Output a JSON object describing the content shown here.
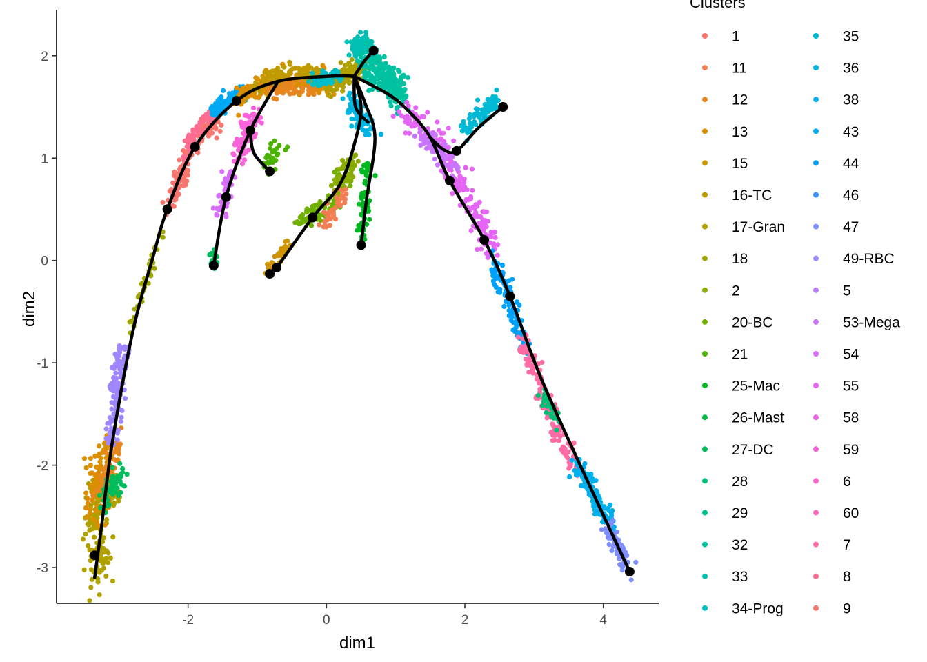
{
  "chart_data": {
    "type": "scatter",
    "xlabel": "dim1",
    "ylabel": "dim2",
    "xlim": [
      -3.9,
      4.8
    ],
    "ylim": [
      -3.35,
      2.45
    ],
    "x_ticks": [
      -2,
      0,
      2,
      4
    ],
    "y_ticks": [
      -3,
      -2,
      -1,
      0,
      1,
      2
    ],
    "x_tick_labels": [
      "-2",
      "0",
      "2",
      "4"
    ],
    "y_tick_labels": [
      "-3",
      "-2",
      "-1",
      "0",
      "1",
      "2"
    ],
    "grid": false,
    "legend": {
      "title": "Clusters",
      "placement": "right",
      "columns": 2,
      "entries": [
        {
          "label": "1",
          "color": "#F8766D"
        },
        {
          "label": "11",
          "color": "#F27D52"
        },
        {
          "label": "12",
          "color": "#E7851E"
        },
        {
          "label": "13",
          "color": "#DB8E00"
        },
        {
          "label": "15",
          "color": "#CF9400"
        },
        {
          "label": "16-TC",
          "color": "#C09B00"
        },
        {
          "label": "17-Gran",
          "color": "#B0A100"
        },
        {
          "label": "18",
          "color": "#9FA600"
        },
        {
          "label": "2",
          "color": "#8AAB00"
        },
        {
          "label": "20-BC",
          "color": "#70B000"
        },
        {
          "label": "21",
          "color": "#4BB400"
        },
        {
          "label": "25-Mac",
          "color": "#00B81F"
        },
        {
          "label": "26-Mast",
          "color": "#00BA42"
        },
        {
          "label": "27-DC",
          "color": "#00BD5C"
        },
        {
          "label": "28",
          "color": "#00BF74"
        },
        {
          "label": "29",
          "color": "#00C08B"
        },
        {
          "label": "32",
          "color": "#00C1A0"
        },
        {
          "label": "33",
          "color": "#00C0B4"
        },
        {
          "label": "34-Prog",
          "color": "#00BDC7"
        },
        {
          "label": "35",
          "color": "#00BAD5"
        },
        {
          "label": "36",
          "color": "#00B5E2"
        },
        {
          "label": "38",
          "color": "#00B0EC"
        },
        {
          "label": "43",
          "color": "#00A9F4"
        },
        {
          "label": "44",
          "color": "#00A1FA"
        },
        {
          "label": "46",
          "color": "#3F98FF"
        },
        {
          "label": "47",
          "color": "#7E8EFF"
        },
        {
          "label": "49-RBC",
          "color": "#9F86FF"
        },
        {
          "label": "5",
          "color": "#B67DFF"
        },
        {
          "label": "53-Mega",
          "color": "#C875FF"
        },
        {
          "label": "54",
          "color": "#D86CFD"
        },
        {
          "label": "55",
          "color": "#E566F5"
        },
        {
          "label": "58",
          "color": "#F062E9"
        },
        {
          "label": "59",
          "color": "#F863DB"
        },
        {
          "label": "6",
          "color": "#FD65CB"
        },
        {
          "label": "60",
          "color": "#FF68B8"
        },
        {
          "label": "7",
          "color": "#FF6BA4"
        },
        {
          "label": "8",
          "color": "#FF6C91"
        },
        {
          "label": "9",
          "color": "#F8766D"
        }
      ]
    },
    "clouds": [
      {
        "color": "#B0A100",
        "n": 170,
        "pts": [
          [
            -3.3,
            -3.08
          ],
          [
            -3.3,
            -2.3
          ],
          [
            -3.05,
            -2.2
          ]
        ],
        "spread": 0.1
      },
      {
        "color": "#DB8E00",
        "n": 90,
        "pts": [
          [
            -3.35,
            -2.5
          ],
          [
            -3.25,
            -1.95
          ],
          [
            -3.1,
            -1.8
          ]
        ],
        "spread": 0.07
      },
      {
        "color": "#E7851E",
        "n": 50,
        "pts": [
          [
            -3.3,
            -2.3
          ],
          [
            -3.0,
            -1.75
          ]
        ],
        "spread": 0.06
      },
      {
        "color": "#00BD5C",
        "n": 55,
        "pts": [
          [
            -3.2,
            -2.35
          ],
          [
            -3.0,
            -2.1
          ]
        ],
        "spread": 0.06
      },
      {
        "color": "#9F86FF",
        "n": 120,
        "pts": [
          [
            -3.1,
            -1.8
          ],
          [
            -3.05,
            -1.3
          ],
          [
            -2.95,
            -0.85
          ]
        ],
        "spread": 0.05
      },
      {
        "color": "#9FA600",
        "n": 40,
        "pts": [
          [
            -2.85,
            -0.7
          ],
          [
            -2.55,
            -0.05
          ],
          [
            -2.35,
            0.32
          ]
        ],
        "spread": 0.03
      },
      {
        "color": "#F8766D",
        "n": 150,
        "pts": [
          [
            -2.28,
            0.5
          ],
          [
            -2.05,
            0.95
          ],
          [
            -1.88,
            1.2
          ],
          [
            -1.6,
            1.38
          ]
        ],
        "spread": 0.05
      },
      {
        "color": "#FF6C91",
        "n": 50,
        "pts": [
          [
            -2.1,
            1.0
          ],
          [
            -1.85,
            1.3
          ],
          [
            -1.6,
            1.45
          ]
        ],
        "spread": 0.04
      },
      {
        "color": "#00A9F4",
        "n": 110,
        "pts": [
          [
            -1.65,
            1.45
          ],
          [
            -1.4,
            1.58
          ],
          [
            -1.15,
            1.67
          ]
        ],
        "spread": 0.04
      },
      {
        "color": "#DB8E00",
        "n": 260,
        "pts": [
          [
            -1.25,
            1.6
          ],
          [
            -0.8,
            1.74
          ],
          [
            -0.3,
            1.76
          ],
          [
            0.1,
            1.72
          ]
        ],
        "spread": 0.05
      },
      {
        "color": "#C09B00",
        "n": 120,
        "pts": [
          [
            -1.05,
            1.68
          ],
          [
            -0.5,
            1.85
          ],
          [
            -0.1,
            1.82
          ]
        ],
        "spread": 0.04
      },
      {
        "color": "#E7851E",
        "n": 60,
        "pts": [
          [
            -0.85,
            1.65
          ],
          [
            -0.2,
            1.68
          ]
        ],
        "spread": 0.04
      },
      {
        "color": "#B0A100",
        "n": 130,
        "pts": [
          [
            0.05,
            1.72
          ],
          [
            0.3,
            1.82
          ],
          [
            0.55,
            1.9
          ]
        ],
        "spread": 0.05
      },
      {
        "color": "#00BDC7",
        "n": 90,
        "pts": [
          [
            -0.2,
            1.75
          ],
          [
            0.2,
            1.82
          ]
        ],
        "spread": 0.03
      },
      {
        "color": "#00C0B4",
        "n": 130,
        "pts": [
          [
            0.4,
            2.05
          ],
          [
            0.55,
            2.12
          ],
          [
            0.7,
            2.02
          ]
        ],
        "spread": 0.05
      },
      {
        "color": "#00C1A0",
        "n": 220,
        "pts": [
          [
            0.6,
            1.9
          ],
          [
            0.85,
            1.8
          ],
          [
            1.05,
            1.6
          ]
        ],
        "spread": 0.08
      },
      {
        "color": "#00B5E2",
        "n": 80,
        "pts": [
          [
            0.3,
            1.55
          ],
          [
            0.5,
            1.4
          ],
          [
            0.6,
            1.25
          ]
        ],
        "spread": 0.06
      },
      {
        "color": "#F863DB",
        "n": 90,
        "pts": [
          [
            -1.3,
            0.95
          ],
          [
            -1.15,
            1.25
          ],
          [
            -1.0,
            1.45
          ]
        ],
        "spread": 0.05
      },
      {
        "color": "#D86CFD",
        "n": 50,
        "pts": [
          [
            -1.55,
            0.45
          ],
          [
            -1.45,
            0.7
          ],
          [
            -1.35,
            0.9
          ]
        ],
        "spread": 0.04
      },
      {
        "color": "#4BB400",
        "n": 30,
        "pts": [
          [
            -0.85,
            0.95
          ],
          [
            -0.7,
            1.1
          ]
        ],
        "spread": 0.05
      },
      {
        "color": "#00BD5C",
        "n": 20,
        "pts": [
          [
            -1.65,
            -0.08
          ],
          [
            -1.6,
            0.1
          ]
        ],
        "spread": 0.03
      },
      {
        "color": "#70B000",
        "n": 100,
        "pts": [
          [
            -0.4,
            0.38
          ],
          [
            -0.1,
            0.48
          ],
          [
            0.1,
            0.58
          ],
          [
            0.3,
            0.9
          ]
        ],
        "spread": 0.05
      },
      {
        "color": "#8AAB00",
        "n": 60,
        "pts": [
          [
            0.15,
            0.7
          ],
          [
            0.4,
            1.0
          ]
        ],
        "spread": 0.05
      },
      {
        "color": "#F27D52",
        "n": 40,
        "pts": [
          [
            -0.05,
            0.35
          ],
          [
            0.15,
            0.55
          ],
          [
            0.3,
            0.7
          ]
        ],
        "spread": 0.04
      },
      {
        "color": "#CF9400",
        "n": 40,
        "pts": [
          [
            -0.85,
            -0.12
          ],
          [
            -0.7,
            0.02
          ],
          [
            -0.55,
            0.18
          ]
        ],
        "spread": 0.03
      },
      {
        "color": "#00B81F",
        "n": 70,
        "pts": [
          [
            0.5,
            0.2
          ],
          [
            0.55,
            0.55
          ],
          [
            0.6,
            0.95
          ]
        ],
        "spread": 0.04
      },
      {
        "color": "#E566F5",
        "n": 200,
        "pts": [
          [
            1.1,
            1.42
          ],
          [
            1.6,
            1.18
          ],
          [
            2.0,
            0.65
          ],
          [
            2.4,
            0.08
          ]
        ],
        "spread": 0.07
      },
      {
        "color": "#C875FF",
        "n": 60,
        "pts": [
          [
            1.4,
            1.2
          ],
          [
            1.85,
            0.95
          ]
        ],
        "spread": 0.05
      },
      {
        "color": "#00BAD5",
        "n": 70,
        "pts": [
          [
            1.95,
            1.25
          ],
          [
            2.2,
            1.42
          ],
          [
            2.45,
            1.55
          ]
        ],
        "spread": 0.05
      },
      {
        "color": "#00A1FA",
        "n": 110,
        "pts": [
          [
            2.35,
            0.05
          ],
          [
            2.65,
            -0.4
          ],
          [
            2.9,
            -0.9
          ]
        ],
        "spread": 0.05
      },
      {
        "color": "#FF6BA4",
        "n": 140,
        "pts": [
          [
            2.8,
            -0.75
          ],
          [
            3.1,
            -1.25
          ],
          [
            3.4,
            -1.75
          ],
          [
            3.65,
            -2.05
          ]
        ],
        "spread": 0.05
      },
      {
        "color": "#00BF74",
        "n": 30,
        "pts": [
          [
            3.15,
            -1.35
          ],
          [
            3.35,
            -1.55
          ]
        ],
        "spread": 0.04
      },
      {
        "color": "#00B0EC",
        "n": 120,
        "pts": [
          [
            3.6,
            -1.95
          ],
          [
            3.9,
            -2.35
          ],
          [
            4.15,
            -2.6
          ]
        ],
        "spread": 0.05
      },
      {
        "color": "#7E8EFF",
        "n": 80,
        "pts": [
          [
            4.05,
            -2.6
          ],
          [
            4.25,
            -2.85
          ],
          [
            4.4,
            -3.05
          ]
        ],
        "spread": 0.04
      }
    ],
    "trajectories": [
      [
        [
          -3.35,
          -3.1
        ],
        [
          -3.25,
          -2.6
        ],
        [
          -3.1,
          -1.8
        ],
        [
          -2.8,
          -0.7
        ],
        [
          -2.5,
          0.05
        ],
        [
          -2.3,
          0.5
        ],
        [
          -1.9,
          1.11
        ],
        [
          -1.3,
          1.56
        ],
        [
          -0.7,
          1.75
        ],
        [
          0.05,
          1.8
        ],
        [
          0.4,
          1.8
        ]
      ],
      [
        [
          0.4,
          1.8
        ],
        [
          0.55,
          1.95
        ],
        [
          0.68,
          2.05
        ]
      ],
      [
        [
          0.4,
          1.8
        ],
        [
          0.9,
          1.62
        ],
        [
          1.2,
          1.45
        ],
        [
          1.5,
          1.2
        ],
        [
          1.78,
          0.78
        ],
        [
          2.28,
          0.2
        ],
        [
          2.65,
          -0.35
        ],
        [
          3.1,
          -1.15
        ],
        [
          3.7,
          -2.05
        ],
        [
          4.38,
          -3.04
        ]
      ],
      [
        [
          1.5,
          1.2
        ],
        [
          1.7,
          1.08
        ],
        [
          1.88,
          1.07
        ],
        [
          2.2,
          1.3
        ],
        [
          2.55,
          1.5
        ]
      ],
      [
        [
          -1.63,
          -0.05
        ],
        [
          -1.45,
          0.62
        ],
        [
          -1.1,
          1.27
        ],
        [
          -0.7,
          1.75
        ]
      ],
      [
        [
          -1.1,
          1.27
        ],
        [
          -1.05,
          1.05
        ],
        [
          -0.82,
          0.87
        ]
      ],
      [
        [
          -0.82,
          -0.13
        ],
        [
          -0.72,
          -0.07
        ],
        [
          -0.2,
          0.42
        ],
        [
          0.2,
          0.75
        ],
        [
          0.42,
          1.18
        ],
        [
          0.5,
          1.5
        ],
        [
          0.4,
          1.8
        ]
      ],
      [
        [
          0.5,
          0.15
        ],
        [
          0.58,
          0.6
        ],
        [
          0.7,
          1.2
        ],
        [
          0.55,
          1.55
        ],
        [
          0.4,
          1.8
        ]
      ],
      [
        [
          0.4,
          1.8
        ],
        [
          0.42,
          1.5
        ],
        [
          0.6,
          1.35
        ]
      ]
    ],
    "nodes": [
      [
        -3.35,
        -2.88
      ],
      [
        -2.3,
        0.5
      ],
      [
        -1.9,
        1.11
      ],
      [
        -1.3,
        1.56
      ],
      [
        0.68,
        2.05
      ],
      [
        1.78,
        0.78
      ],
      [
        2.28,
        0.2
      ],
      [
        2.65,
        -0.35
      ],
      [
        4.38,
        -3.04
      ],
      [
        1.88,
        1.07
      ],
      [
        2.55,
        1.5
      ],
      [
        -1.63,
        -0.05
      ],
      [
        -1.45,
        0.62
      ],
      [
        -1.1,
        1.27
      ],
      [
        -0.82,
        0.87
      ],
      [
        -0.82,
        -0.13
      ],
      [
        -0.72,
        -0.07
      ],
      [
        -0.2,
        0.42
      ],
      [
        0.5,
        0.15
      ]
    ]
  }
}
